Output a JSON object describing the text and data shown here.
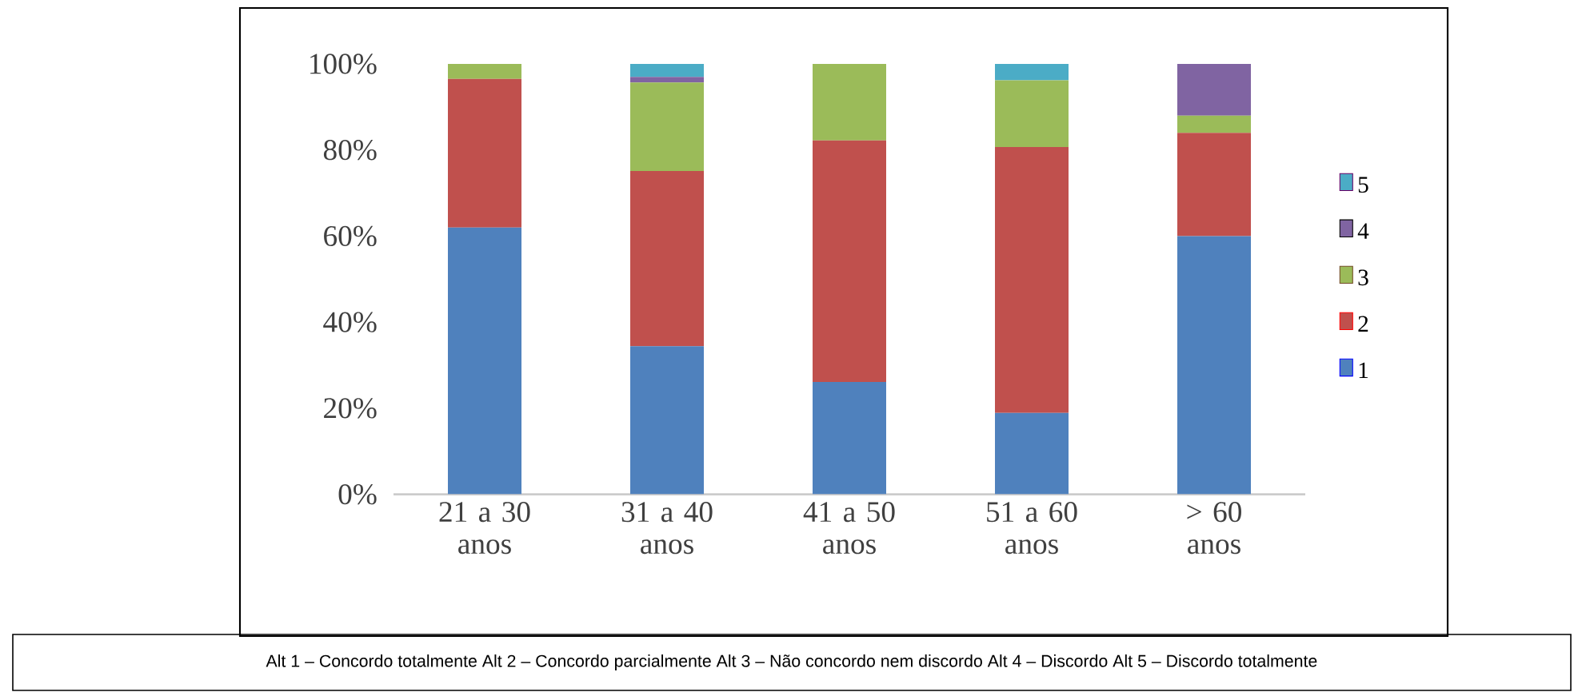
{
  "chart_data": {
    "type": "bar",
    "stacked": true,
    "categories": [
      "21 a 30 anos",
      "31 a 40 anos",
      "41 a 50 anos",
      "51 a 60 anos",
      "> 60 anos"
    ],
    "series": [
      {
        "name": "1",
        "color": "#4f81bd",
        "values": [
          62,
          34.4,
          26.1,
          18.9,
          60
        ]
      },
      {
        "name": "2",
        "color": "#c0504d",
        "values": [
          34.5,
          40.7,
          56.1,
          61.8,
          24
        ]
      },
      {
        "name": "3",
        "color": "#9bbb59",
        "values": [
          3.5,
          20.6,
          17.8,
          15.5,
          4
        ]
      },
      {
        "name": "4",
        "color": "#8064a2",
        "values": [
          0,
          1.3,
          0,
          0,
          12
        ]
      },
      {
        "name": "5",
        "color": "#4bacc6",
        "values": [
          0,
          3,
          0,
          3.8,
          0
        ]
      }
    ],
    "ylim": [
      0,
      100
    ],
    "yticks": [
      {
        "value": 0,
        "label": "0%"
      },
      {
        "value": 20,
        "label": "20%"
      },
      {
        "value": 40,
        "label": "40%"
      },
      {
        "value": 60,
        "label": "60%"
      },
      {
        "value": 80,
        "label": "80%"
      },
      {
        "value": 100,
        "label": "100%"
      }
    ],
    "grid": false,
    "legend": "right",
    "annotations": [
      "Alt 1 – Concordo totalmente   Alt 2 – Concordo parcialmente   Alt 3 – Não concordo nem discordo   Alt 4 – Discordo   Alt 5 – Discordo totalmente"
    ]
  }
}
